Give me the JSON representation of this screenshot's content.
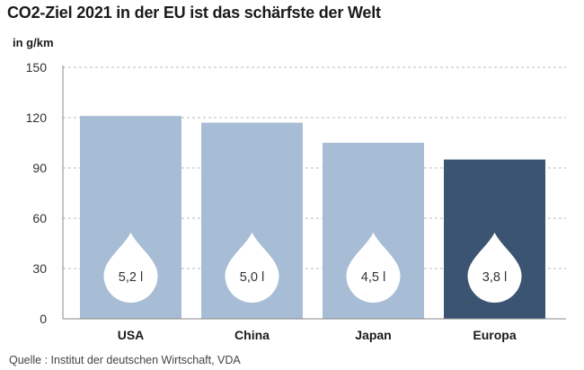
{
  "header": {
    "title": "CO2-Ziel 2021 in der EU ist das schärfste der Welt",
    "unit": "in g/km"
  },
  "footer": {
    "source": "Quelle : Institut der deutschen Wirtschaft, VDA"
  },
  "chart_data": {
    "type": "bar",
    "categories": [
      "USA",
      "China",
      "Japan",
      "Europa"
    ],
    "values": [
      121,
      117,
      105,
      95
    ],
    "annotations": [
      "5,2 l",
      "5,0 l",
      "4,5 l",
      "3,8 l"
    ],
    "ylabel": "in g/km",
    "ylim": [
      0,
      150
    ],
    "yticks": [
      0,
      30,
      60,
      90,
      120,
      150
    ],
    "grid": true,
    "colors": {
      "bar": "#a7bdd5",
      "highlight_bar": "#3a5472",
      "drop": "#ffffff",
      "grid": "#bbbbbb"
    },
    "highlight_index": 3
  }
}
